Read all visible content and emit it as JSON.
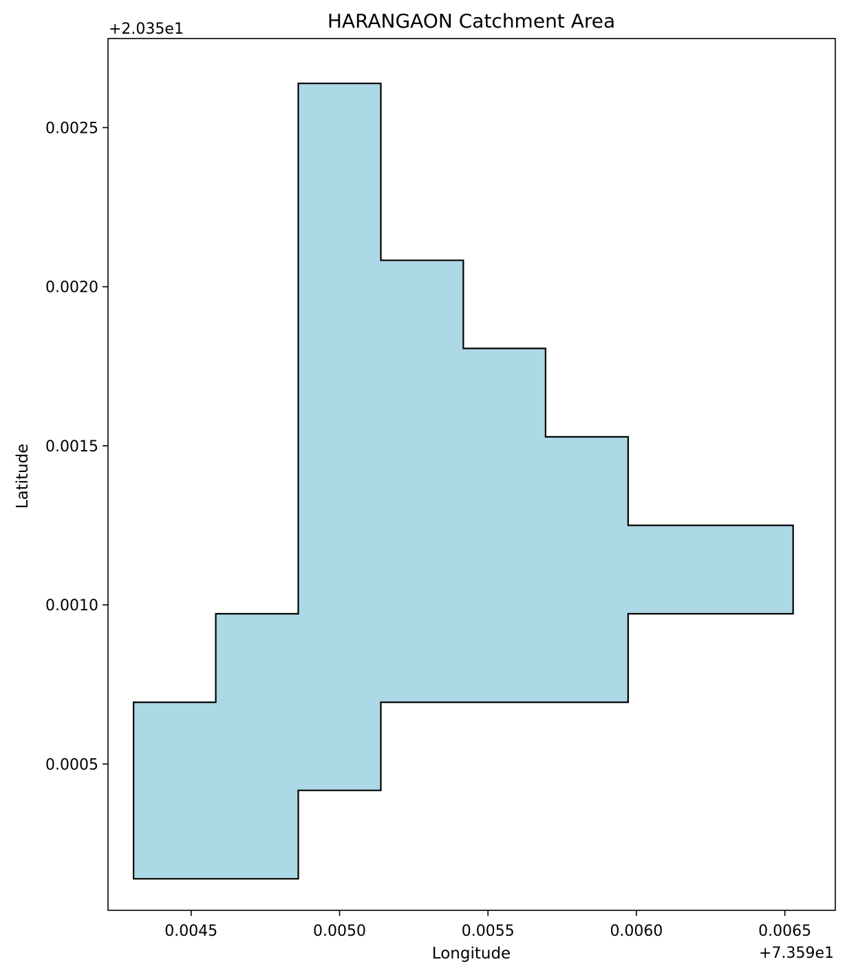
{
  "chart_data": {
    "type": "area",
    "title": "HARANGAON Catchment Area",
    "xlabel": "Longitude",
    "ylabel": "Latitude",
    "x_offset_label": "+7.359e1",
    "y_offset_label": "+2.035e1",
    "xlim": [
      0.00422,
      0.00667
    ],
    "ylim": [
      4e-05,
      0.00278
    ],
    "x_ticks": [
      0.0045,
      0.005,
      0.0055,
      0.006,
      0.0065
    ],
    "x_tick_labels": [
      "0.0045",
      "0.0050",
      "0.0055",
      "0.0060",
      "0.0065"
    ],
    "y_ticks": [
      0.0005,
      0.001,
      0.0015,
      0.002,
      0.0025
    ],
    "y_tick_labels": [
      "0.0005",
      "0.0010",
      "0.0015",
      "0.0020",
      "0.0025"
    ],
    "grid": false,
    "fill_color": "#add8e6",
    "edge_color": "#000000",
    "polygon": [
      [
        0.004861,
        0.002639
      ],
      [
        0.005139,
        0.002639
      ],
      [
        0.005139,
        0.002083
      ],
      [
        0.005417,
        0.002083
      ],
      [
        0.005417,
        0.001806
      ],
      [
        0.005694,
        0.001806
      ],
      [
        0.005694,
        0.001528
      ],
      [
        0.005972,
        0.001528
      ],
      [
        0.005972,
        0.00125
      ],
      [
        0.006528,
        0.00125
      ],
      [
        0.006528,
        0.000972
      ],
      [
        0.005972,
        0.000972
      ],
      [
        0.005972,
        0.000694
      ],
      [
        0.005139,
        0.000694
      ],
      [
        0.005139,
        0.000417
      ],
      [
        0.004861,
        0.000417
      ],
      [
        0.004861,
        0.000139
      ],
      [
        0.004306,
        0.000139
      ],
      [
        0.004306,
        0.000694
      ],
      [
        0.004583,
        0.000694
      ],
      [
        0.004583,
        0.000972
      ],
      [
        0.004861,
        0.000972
      ]
    ]
  }
}
